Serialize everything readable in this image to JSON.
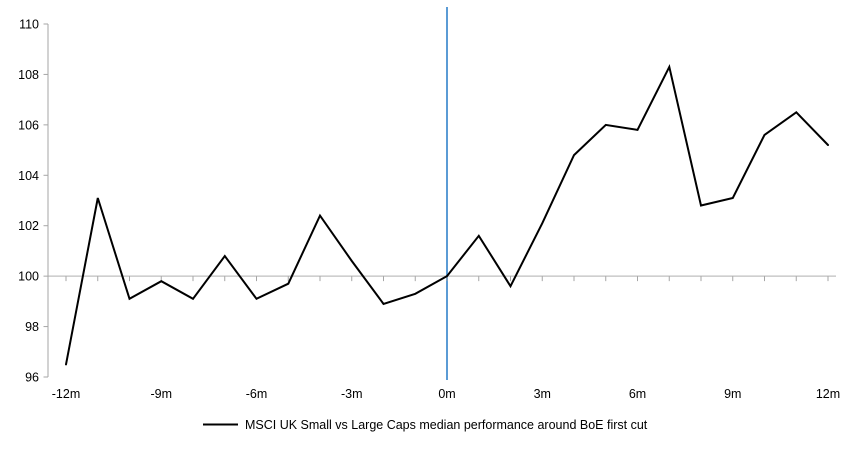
{
  "chart_data": {
    "type": "line",
    "title": "",
    "xlabel": "",
    "ylabel": "",
    "x_unit": "months relative to first cut",
    "x": [
      -12,
      -11,
      -10,
      -9,
      -8,
      -7,
      -6,
      -5,
      -4,
      -3,
      -2,
      -1,
      0,
      1,
      2,
      3,
      4,
      5,
      6,
      7,
      8,
      9,
      10,
      11,
      12
    ],
    "series": [
      {
        "name": "MSCI UK Small vs Large Caps median performance around BoE first cut",
        "color": "#000000",
        "values": [
          96.5,
          103.1,
          99.1,
          99.8,
          99.1,
          100.8,
          99.1,
          99.7,
          102.4,
          100.6,
          98.9,
          99.3,
          100.0,
          101.6,
          99.6,
          102.1,
          104.8,
          106.0,
          105.8,
          108.3,
          102.8,
          103.1,
          105.6,
          106.5,
          105.2
        ]
      }
    ],
    "xlim": [
      -12,
      12
    ],
    "ylim": [
      96,
      110
    ],
    "y_ticks": [
      96,
      98,
      100,
      102,
      104,
      106,
      108,
      110
    ],
    "x_ticks": {
      "labeled_values": [
        -12,
        -9,
        -6,
        -3,
        0,
        3,
        6,
        9,
        12
      ],
      "labels": [
        "-12m",
        "-9m",
        "-6m",
        "-3m",
        "0m",
        "3m",
        "6m",
        "9m",
        "12m"
      ],
      "minor_tick_every": 1
    },
    "reference_lines": {
      "vertical_event_line": {
        "x": 0,
        "color": "#5B9BD5"
      },
      "horizontal_base_line": {
        "y": 100,
        "color": "#BFBFBF"
      }
    },
    "axis_color": "#A6A6A6",
    "grid": "off",
    "legend_position": "bottom-center"
  }
}
